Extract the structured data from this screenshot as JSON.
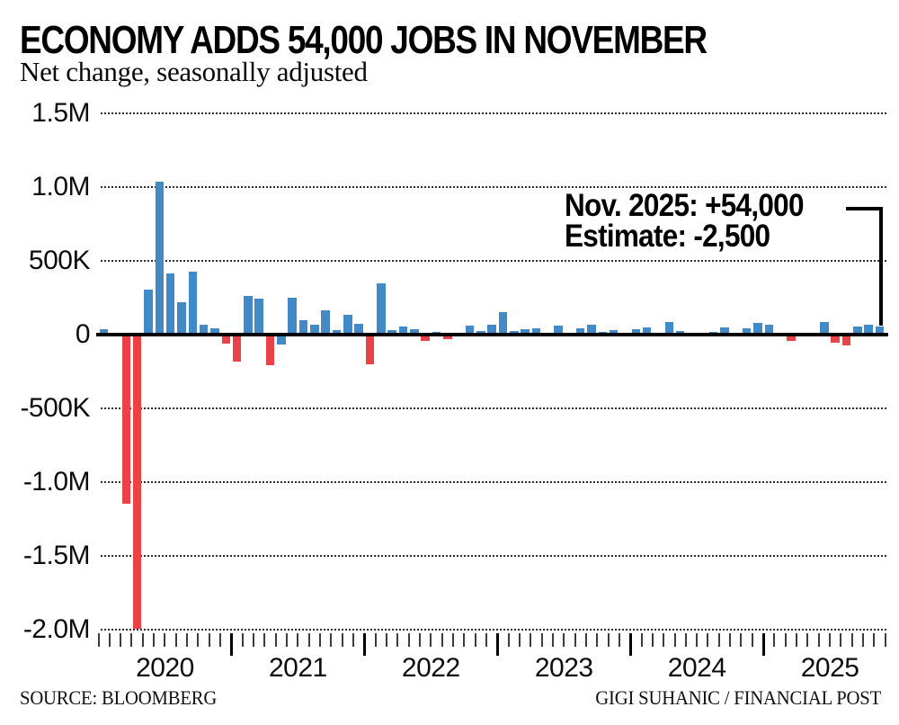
{
  "header": {
    "title": "ECONOMY ADDS 54,000 JOBS IN NOVEMBER",
    "subtitle": "Net change, seasonally adjusted"
  },
  "annotation": {
    "line1": "Nov. 2025: +54,000",
    "line2": "Estimate: -2,500"
  },
  "footer": {
    "source": "SOURCE: BLOOMBERG",
    "credit": "GIGI SUHANIC / FINANCIAL POST"
  },
  "colors": {
    "positive_bar": "#4289C8",
    "negative_bar": "#EA4248",
    "axis": "#000000",
    "grid_dots": "#2e2e2e"
  },
  "chart_data": {
    "type": "bar",
    "title": "ECONOMY ADDS 54,000 JOBS IN NOVEMBER",
    "subtitle": "Net change, seasonally adjusted",
    "unit": "net job change, thousands (seasonally adjusted)",
    "ylim_thousands": [
      -2000,
      1500
    ],
    "grid": "dotted horizontal gridlines, solid zero axis",
    "legend": "none",
    "y_ticks": [
      {
        "label": "1.5M",
        "value": 1500
      },
      {
        "label": "1.0M",
        "value": 1000
      },
      {
        "label": "500K",
        "value": 500
      },
      {
        "label": "0",
        "value": 0
      },
      {
        "label": "-500K",
        "value": -500
      },
      {
        "label": "-1.0M",
        "value": -1000
      },
      {
        "label": "-1.5M",
        "value": -1500
      },
      {
        "label": "-2.0M",
        "value": -2000
      }
    ],
    "x_year_labels": [
      "2020",
      "2021",
      "2022",
      "2023",
      "2024",
      "2025"
    ],
    "months": [
      "2020-01",
      "2020-02",
      "2020-03",
      "2020-04",
      "2020-05",
      "2020-06",
      "2020-07",
      "2020-08",
      "2020-09",
      "2020-10",
      "2020-11",
      "2020-12",
      "2021-01",
      "2021-02",
      "2021-03",
      "2021-04",
      "2021-05",
      "2021-06",
      "2021-07",
      "2021-08",
      "2021-09",
      "2021-10",
      "2021-11",
      "2021-12",
      "2022-01",
      "2022-02",
      "2022-03",
      "2022-04",
      "2022-05",
      "2022-06",
      "2022-07",
      "2022-08",
      "2022-09",
      "2022-10",
      "2022-11",
      "2022-12",
      "2023-01",
      "2023-02",
      "2023-03",
      "2023-04",
      "2023-05",
      "2023-06",
      "2023-07",
      "2023-08",
      "2023-09",
      "2023-10",
      "2023-11",
      "2023-12",
      "2024-01",
      "2024-02",
      "2024-03",
      "2024-04",
      "2024-05",
      "2024-06",
      "2024-07",
      "2024-08",
      "2024-09",
      "2024-10",
      "2024-11",
      "2024-12",
      "2025-01",
      "2025-02",
      "2025-03",
      "2025-04",
      "2025-05",
      "2025-06",
      "2025-07",
      "2025-08",
      "2025-09",
      "2025-10",
      "2025-11"
    ],
    "values_thousands": [
      35,
      5,
      -1148,
      -1993,
      305,
      1035,
      415,
      220,
      425,
      65,
      40,
      -60,
      -185,
      265,
      245,
      -205,
      -65,
      250,
      95,
      70,
      165,
      30,
      135,
      75,
      -200,
      345,
      30,
      52,
      38,
      -44,
      20,
      -30,
      15,
      63,
      22,
      70,
      150,
      22,
      37,
      42,
      -15,
      63,
      15,
      42,
      67,
      18,
      32,
      2,
      38,
      47,
      -2,
      85,
      25,
      -1,
      -3,
      18,
      47,
      10,
      42,
      80,
      70,
      1,
      -43,
      7,
      9,
      83,
      -55,
      -75,
      55,
      65,
      54
    ],
    "blue_negative_exceptions": [
      "2021-05"
    ],
    "highlighted_point": {
      "month": "2025-11",
      "value_label": "+54,000",
      "estimate_label": "-2,500"
    }
  }
}
